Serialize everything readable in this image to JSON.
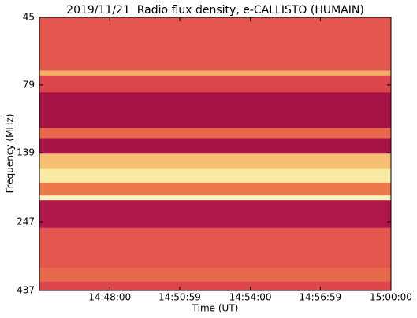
{
  "chart_data": {
    "type": "spectrogram",
    "title": "2019/11/21  Radio flux density, e-CALLISTO (HUMAIN)",
    "x_label": "Time (UT)",
    "y_label": "Frequency (MHz)",
    "xlim": [
      "14:45:00",
      "15:00:00"
    ],
    "xticks": [
      "14:48:00",
      "14:50:59",
      "14:54:00",
      "14:56:59",
      "15:00:00"
    ],
    "ylim": [
      45,
      437
    ],
    "yticks": [
      45,
      79,
      139,
      247,
      437
    ],
    "y_log": true,
    "y_inverted": true,
    "edges": [
      45,
      70,
      73,
      84,
      113,
      123,
      140,
      159,
      178,
      198,
      206,
      260,
      361,
      406,
      437
    ],
    "levels": [
      0.35,
      0.6,
      0.3,
      0.05,
      0.4,
      0.05,
      0.65,
      0.85,
      0.45,
      0.95,
      0.08,
      0.35,
      0.4,
      0.3
    ],
    "colormap": [
      "#9b0a45",
      "#d8344e",
      "#f08a4b",
      "#fbe28a",
      "#f7f7c8"
    ]
  }
}
